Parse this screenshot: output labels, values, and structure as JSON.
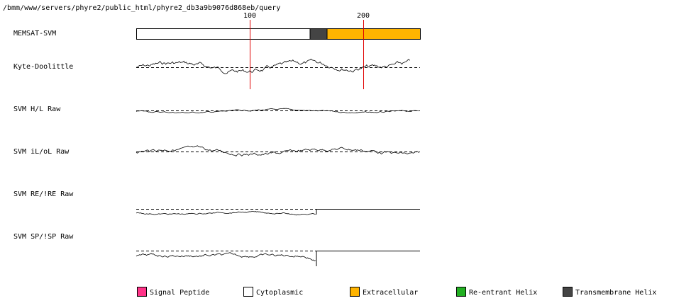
{
  "header": {
    "title": "/bmm/www/servers/phyre2/public_html/phyre2_db3a9b9076d868eb/query"
  },
  "ruler": {
    "ticks": [
      "100",
      "200"
    ]
  },
  "tracks": [
    {
      "label": "MEMSAT-SVM"
    },
    {
      "label": "Kyte-Doolittle"
    },
    {
      "label": "SVM H/L Raw"
    },
    {
      "label": "SVM iL/oL Raw"
    },
    {
      "label": "SVM RE/!RE Raw"
    },
    {
      "label": "SVM SP/!SP Raw"
    }
  ],
  "legend": [
    {
      "label": "Signal Peptide",
      "color": "#ff3388"
    },
    {
      "label": "Cytoplasmic",
      "color": "#ffffff"
    },
    {
      "label": "Extracellular",
      "color": "#ffb400"
    },
    {
      "label": "Re-entrant Helix",
      "color": "#22b022"
    },
    {
      "label": "Transmembrane Helix",
      "color": "#444444"
    }
  ]
}
